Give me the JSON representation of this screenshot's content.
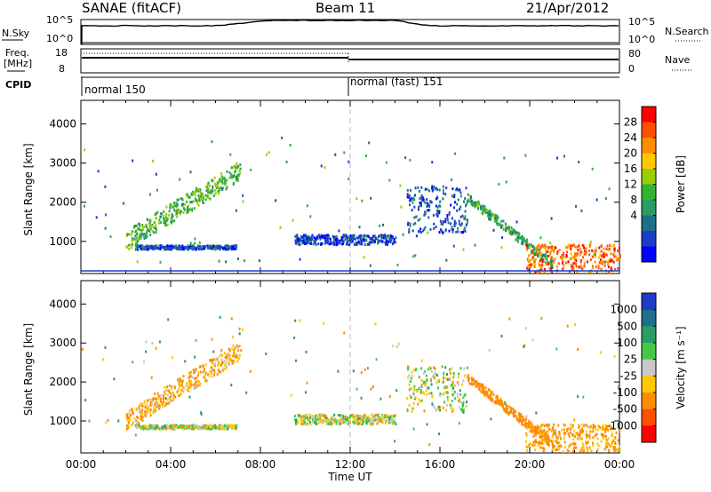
{
  "header": {
    "title": "SANAE (fitACF)",
    "beam": "Beam 11",
    "date": "21/Apr/2012"
  },
  "top_panels": {
    "nsky_label": "N.Sky",
    "nsearch_label": "N.Search",
    "nsky_ticks": [
      "10^5",
      "10^0"
    ],
    "nsearch_ticks": [
      "10^5",
      "10^0"
    ],
    "freq_label": "Freq.",
    "freq_unit": "[MHz]",
    "freq_ticks": [
      "18",
      "8"
    ],
    "nave_label": "Nave",
    "nave_ticks": [
      "80",
      "0"
    ],
    "cpid_label": "CPID",
    "cpid_segments": [
      {
        "text": "normal 150",
        "start": "00:00"
      },
      {
        "text": "normal (fast) 151",
        "start": "12:00"
      }
    ]
  },
  "colorbars": {
    "power": {
      "title": "Power [dB]",
      "labels": [
        "28",
        "24",
        "20",
        "16",
        "12",
        "8",
        "4"
      ],
      "colors": [
        "#ff0000",
        "#ff5000",
        "#ff8c00",
        "#ffc800",
        "#9bcd00",
        "#32b432",
        "#2d9b64",
        "#1e6e8c",
        "#1e3cc8",
        "#0000ff"
      ]
    },
    "velocity": {
      "title": "Velocity [m s⁻¹]",
      "labels": [
        "1000",
        "500",
        "100",
        "25",
        "-25",
        "-100",
        "-500",
        "-1000"
      ],
      "colors": [
        "#1e3cc8",
        "#1e6e8c",
        "#2d9b64",
        "#46c846",
        "#c8c8c8",
        "#ffc800",
        "#ff8c00",
        "#ff5000",
        "#ff0000"
      ]
    }
  },
  "chart_data": [
    {
      "type": "heatmap",
      "panel": "power",
      "ylabel": "Slant Range [km]",
      "ylim": [
        180,
        4600
      ],
      "yticks": [
        "4000",
        "3000",
        "2000",
        "1000"
      ],
      "xlim_hours": [
        0,
        24
      ],
      "xlabel": "",
      "regions": [
        {
          "name": "early-arc",
          "t": [
            2.0,
            7.1
          ],
          "r_start": [
            1000,
            2800
          ],
          "width_km": 500,
          "power_dB": 14
        },
        {
          "name": "early-low-band",
          "t": [
            2.4,
            6.9
          ],
          "r": [
            780,
            880
          ],
          "power_dB": 6
        },
        {
          "name": "night-echoes",
          "t": [
            9.5,
            14.0
          ],
          "r": [
            900,
            1150
          ],
          "power_dB": 5
        },
        {
          "name": "rising-echoes",
          "t": [
            14.5,
            17.2
          ],
          "r": [
            1200,
            2400
          ],
          "power_dB": 6
        },
        {
          "name": "descending-echoes",
          "t": [
            17.2,
            21.0
          ],
          "r": [
            2100,
            400
          ],
          "power_dB": 12
        },
        {
          "name": "near-range-band",
          "t": [
            19.8,
            24.0
          ],
          "r": [
            200,
            900
          ],
          "power_dB": 26
        }
      ]
    },
    {
      "type": "heatmap",
      "panel": "velocity",
      "ylabel": "Slant Range [km]",
      "ylim": [
        180,
        4600
      ],
      "yticks": [
        "4000",
        "3000",
        "2000",
        "1000"
      ],
      "xlim_hours": [
        0,
        24
      ],
      "xlabel": "Time UT",
      "xticks": [
        "00:00",
        "04:00",
        "08:00",
        "12:00",
        "16:00",
        "20:00",
        "00:00"
      ],
      "regions": [
        {
          "name": "early-arc",
          "t": [
            2.0,
            7.1
          ],
          "r_start": [
            1000,
            2800
          ],
          "width_km": 500,
          "velocity": -120
        },
        {
          "name": "early-low-band",
          "t": [
            2.4,
            6.9
          ],
          "r": [
            780,
            880
          ],
          "velocity": 0
        },
        {
          "name": "night-echoes",
          "t": [
            9.5,
            14.0
          ],
          "r": [
            900,
            1150
          ],
          "velocity": 0
        },
        {
          "name": "rising-echoes",
          "t": [
            14.5,
            17.2
          ],
          "r": [
            1200,
            2400
          ],
          "velocity": 0
        },
        {
          "name": "descending-echoes",
          "t": [
            17.2,
            21.0
          ],
          "r": [
            2100,
            400
          ],
          "velocity": -300
        },
        {
          "name": "near-range-band",
          "t": [
            19.8,
            24.0
          ],
          "r": [
            200,
            900
          ],
          "velocity": -150
        }
      ]
    }
  ]
}
